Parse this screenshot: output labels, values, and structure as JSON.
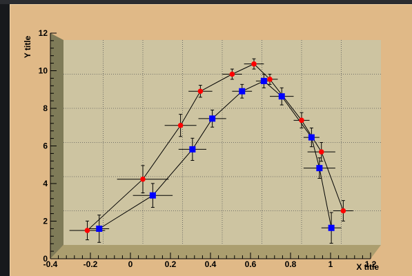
{
  "chart_data": {
    "type": "line",
    "xlabel": "X title",
    "ylabel": "Y title",
    "xlim": [
      -0.4,
      1.2
    ],
    "ylim": [
      0,
      12
    ],
    "x_ticks": [
      "-0.4",
      "-0.2",
      "0",
      "0.2",
      "0.4",
      "0.6",
      "0.8",
      "1",
      "1.2"
    ],
    "y_ticks": [
      "0",
      "2",
      "4",
      "6",
      "8",
      "10",
      "12"
    ],
    "grid": true,
    "legend": "none",
    "series": [
      {
        "marker": "circle",
        "color": "#ff0000",
        "points": [
          {
            "x": -0.28,
            "y": 0.85,
            "ex": 0.09,
            "ey": 0.55
          },
          {
            "x": 0.0,
            "y": 3.85,
            "ex": 0.13,
            "ey": 0.8
          },
          {
            "x": 0.19,
            "y": 7.0,
            "ex": 0.08,
            "ey": 0.65
          },
          {
            "x": 0.29,
            "y": 9.0,
            "ex": 0.06,
            "ey": 0.35
          },
          {
            "x": 0.45,
            "y": 10.0,
            "ex": 0.05,
            "ey": 0.3
          },
          {
            "x": 0.56,
            "y": 10.6,
            "ex": 0.05,
            "ey": 0.3
          },
          {
            "x": 0.64,
            "y": 9.7,
            "ex": 0.04,
            "ey": 0.3
          },
          {
            "x": 0.8,
            "y": 7.3,
            "ex": 0.04,
            "ey": 0.45
          },
          {
            "x": 0.9,
            "y": 5.45,
            "ex": 0.07,
            "ey": 0.55
          },
          {
            "x": 1.01,
            "y": 2.0,
            "ex": 0.05,
            "ey": 0.6
          }
        ]
      },
      {
        "marker": "square",
        "color": "#0000ff",
        "points": [
          {
            "x": -0.22,
            "y": 0.95,
            "ex": 0.05,
            "ey": 0.8
          },
          {
            "x": 0.05,
            "y": 2.9,
            "ex": 0.1,
            "ey": 0.7
          },
          {
            "x": 0.25,
            "y": 5.6,
            "ex": 0.07,
            "ey": 0.65
          },
          {
            "x": 0.35,
            "y": 7.4,
            "ex": 0.07,
            "ey": 0.5
          },
          {
            "x": 0.5,
            "y": 9.0,
            "ex": 0.05,
            "ey": 0.4
          },
          {
            "x": 0.61,
            "y": 9.6,
            "ex": 0.04,
            "ey": 0.4
          },
          {
            "x": 0.7,
            "y": 8.7,
            "ex": 0.06,
            "ey": 0.5
          },
          {
            "x": 0.85,
            "y": 6.3,
            "ex": 0.04,
            "ey": 0.55
          },
          {
            "x": 0.89,
            "y": 4.5,
            "ex": 0.08,
            "ey": 0.6
          },
          {
            "x": 0.95,
            "y": 1.0,
            "ex": 0.05,
            "ey": 0.9
          }
        ]
      }
    ]
  }
}
